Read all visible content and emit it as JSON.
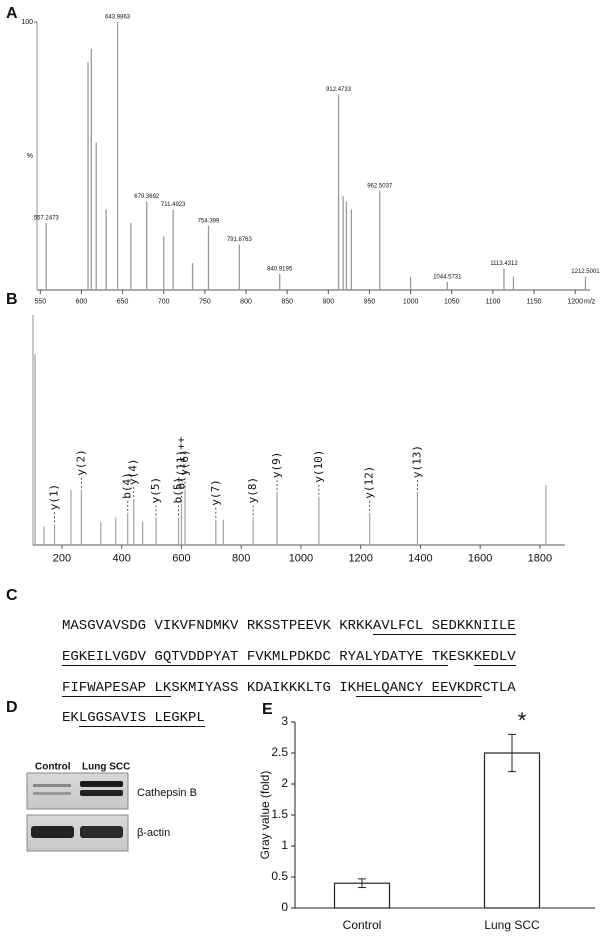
{
  "panels": [
    "A",
    "B",
    "C",
    "D",
    "E"
  ],
  "chart_data": [
    {
      "type": "spectrum",
      "x_label": "m/z",
      "y_label": "%",
      "color": "#9a9a9a",
      "xlim": [
        546,
        1218
      ],
      "xticks": [
        550,
        600,
        650,
        700,
        750,
        800,
        850,
        900,
        950,
        1000,
        1050,
        1100,
        1150,
        1200
      ],
      "ylim": [
        0,
        100
      ],
      "yticks": [
        100
      ],
      "series": [
        {
          "peak_labels": true,
          "x": [
            557.2473,
            643.9863,
            679.3692,
            711.4923,
            754.399,
            791.8763,
            840.9195,
            912.4733,
            962.5037,
            1044.5731,
            1113.4312,
            1212.5001
          ],
          "values": [
            25,
            100,
            33,
            30,
            24,
            17,
            6,
            73,
            37,
            3,
            8,
            5
          ]
        },
        {
          "x": [
            608,
            612,
            618,
            630,
            660,
            700,
            735,
            918,
            922,
            928,
            1000,
            1125
          ],
          "values": [
            85,
            90,
            55,
            30,
            25,
            20,
            10,
            35,
            33,
            30,
            5,
            5
          ]
        }
      ]
    },
    {
      "type": "spectrum",
      "color": "#a8a8a8",
      "xlim": [
        103,
        1884
      ],
      "xticks": [
        200,
        400,
        600,
        800,
        1000,
        1200,
        1400,
        1600,
        1800
      ],
      "ylim": [
        0,
        100
      ],
      "series": [
        {
          "x": [
            175,
            265,
            420,
            440,
            515,
            590,
            600,
            612,
            715,
            840,
            920,
            1060,
            1230,
            1390
          ],
          "values": [
            9,
            24,
            14,
            20,
            12,
            12,
            18,
            24,
            11,
            12,
            23,
            21,
            14,
            23
          ],
          "labels": [
            "y(1)",
            "y(2)",
            "b(4)",
            "y(4)",
            "y(5)",
            "b(5)",
            "b†(11)++",
            "y(6)",
            "y(7)",
            "y(8)",
            "y(9)",
            "y(10)",
            "y(12)",
            "y(13)"
          ]
        },
        {
          "x": [
            110,
            140,
            230,
            330,
            380,
            470,
            740,
            1820
          ],
          "values": [
            83,
            8,
            24,
            10,
            12,
            10,
            11,
            26
          ]
        }
      ]
    },
    {
      "type": "bar",
      "y_label": "Gray value (fold)",
      "color": "#ffffff",
      "categories": [
        "Control",
        "Lung SCC"
      ],
      "values": [
        0.4,
        2.5
      ],
      "errors": [
        0.07,
        0.3
      ],
      "significance": [
        null,
        "*"
      ],
      "ylim": [
        0,
        3
      ],
      "yticks": [
        0,
        0.5,
        1,
        1.5,
        2,
        2.5,
        3
      ]
    }
  ],
  "sequence": {
    "lines": [
      [
        {
          "text": "MASGVAVSDG VIKVFNDMKV RKSSTPEEVK KRKK",
          "underline": false
        },
        {
          "text": "AVLFCL SEDKKNIILE",
          "underline": true
        }
      ],
      [
        {
          "text": "EGKEILVGDV GQTVDDPYAT FVKMLPDKDC RYALYDATYE TK",
          "underline": true
        },
        {
          "text": "ESK",
          "underline": false
        },
        {
          "text": "KEDLV",
          "underline": true
        }
      ],
      [
        {
          "text": "FIFWAPESAP LK",
          "underline": true
        },
        {
          "text": "SKMIYASS KDAIKKKLTG IK",
          "underline": false
        },
        {
          "text": "HELQANCY EEVKDR",
          "underline": true
        },
        {
          "text": "CTLA",
          "underline": false
        }
      ],
      [
        {
          "text": "EK",
          "underline": false
        },
        {
          "text": "LGGSAVIS LEGKPL",
          "underline": true
        }
      ]
    ]
  },
  "blot": {
    "lanes": [
      "Control",
      "Lung SCC"
    ],
    "bands": [
      "Cathepsin B",
      "β-actin"
    ]
  }
}
